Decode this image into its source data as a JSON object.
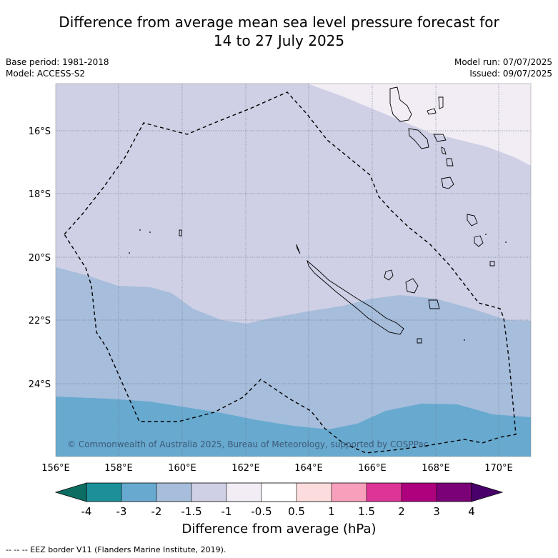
{
  "title": {
    "line1": "Difference from average mean sea level pressure forecast for",
    "line2": "14 to 27 July 2025"
  },
  "meta": {
    "base_period": "Base period: 1981-2018",
    "model": "Model: ACCESS-S2",
    "model_run": "Model run: 07/07/2025",
    "issued": "Issued: 09/07/2025"
  },
  "map": {
    "lon_range": [
      156,
      171
    ],
    "lat_range": [
      -26.5,
      -14.8
    ],
    "lon_ticks": [
      "156°E",
      "158°E",
      "160°E",
      "162°E",
      "164°E",
      "166°E",
      "168°E",
      "170°E"
    ],
    "lat_ticks": [
      "16°S",
      "18°S",
      "20°S",
      "22°S",
      "24°S"
    ],
    "copyright": "© Commonwealth of Australia 2025, Bureau of Meteorology, supported by COSPPac",
    "colors": {
      "band_-1_to_-0.5": "#f2edf4",
      "band_-1.5_to_-1": "#cfd0e5",
      "band_-2_to_-1.5": "#a6bddb",
      "band_-3_to_-2": "#67a9cf"
    }
  },
  "colorbar": {
    "title": "Difference from average (hPa)",
    "ticks": [
      "-4",
      "-3",
      "-2",
      "-1.5",
      "-1",
      "-0.5",
      "0.5",
      "1",
      "1.5",
      "2",
      "3",
      "4"
    ],
    "colors": [
      "#0c6e62",
      "#1c9099",
      "#67a9cf",
      "#a6bddb",
      "#cfd0e5",
      "#f2edf4",
      "#ffffff",
      "#fcdcdc",
      "#f79fbb",
      "#dd3497",
      "#ae017e",
      "#7a0177",
      "#49006a"
    ]
  },
  "footnote": "--  --  -- EEZ border V11 (Flanders Marine Institute, 2019)."
}
